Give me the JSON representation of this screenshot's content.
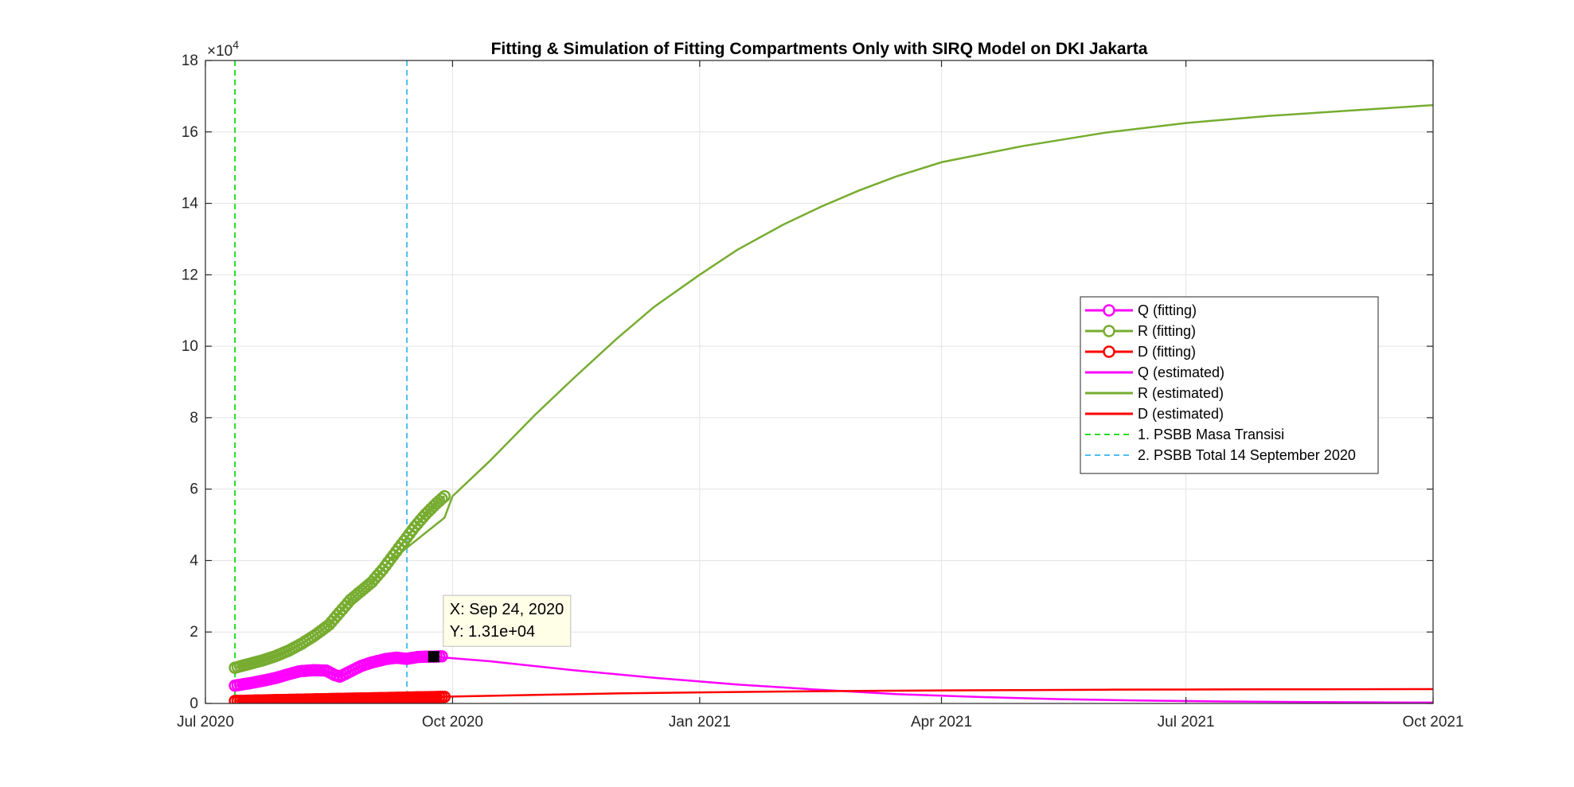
{
  "chart_data": {
    "type": "line",
    "title": "Fitting & Simulation of Fitting Compartments Only with SIRQ Model on DKI Jakarta",
    "xlabel": "",
    "ylabel": "",
    "y_multiplier_label": "×10",
    "y_multiplier_exp": "4",
    "x_range": [
      "2020-07-01",
      "2021-10-01"
    ],
    "ylim": [
      0,
      180000
    ],
    "x_ticks": [
      {
        "date": "2020-07-01",
        "label": "Jul 2020"
      },
      {
        "date": "2020-10-01",
        "label": "Oct 2020"
      },
      {
        "date": "2021-01-01",
        "label": "Jan 2021"
      },
      {
        "date": "2021-04-01",
        "label": "Apr 2021"
      },
      {
        "date": "2021-07-01",
        "label": "Jul 2021"
      },
      {
        "date": "2021-10-01",
        "label": "Oct 2021"
      }
    ],
    "y_ticks": [
      {
        "value": 0,
        "label": "0"
      },
      {
        "value": 20000,
        "label": "2"
      },
      {
        "value": 40000,
        "label": "4"
      },
      {
        "value": 60000,
        "label": "6"
      },
      {
        "value": 80000,
        "label": "8"
      },
      {
        "value": 100000,
        "label": "10"
      },
      {
        "value": 120000,
        "label": "12"
      },
      {
        "value": 140000,
        "label": "14"
      },
      {
        "value": 160000,
        "label": "16"
      },
      {
        "value": 180000,
        "label": "18"
      }
    ],
    "grid": true,
    "legend_position": "east",
    "series": [
      {
        "name": "Q (fitting)",
        "color": "#ff00ff",
        "style": "line-marker",
        "points": [
          [
            "2020-07-12",
            5000
          ],
          [
            "2020-07-17",
            5600
          ],
          [
            "2020-07-22",
            6300
          ],
          [
            "2020-07-27",
            7100
          ],
          [
            "2020-08-01",
            8200
          ],
          [
            "2020-08-05",
            9000
          ],
          [
            "2020-08-10",
            9300
          ],
          [
            "2020-08-15",
            9200
          ],
          [
            "2020-08-18",
            8000
          ],
          [
            "2020-08-20",
            7500
          ],
          [
            "2020-08-24",
            9000
          ],
          [
            "2020-08-28",
            10500
          ],
          [
            "2020-09-01",
            11500
          ],
          [
            "2020-09-06",
            12400
          ],
          [
            "2020-09-10",
            12800
          ],
          [
            "2020-09-14",
            12500
          ],
          [
            "2020-09-18",
            13000
          ],
          [
            "2020-09-22",
            13100
          ],
          [
            "2020-09-24",
            13100
          ],
          [
            "2020-09-27",
            13200
          ]
        ]
      },
      {
        "name": "R (fitting)",
        "color": "#77ac30",
        "style": "line-marker",
        "points": [
          [
            "2020-07-12",
            10000
          ],
          [
            "2020-07-17",
            11000
          ],
          [
            "2020-07-22",
            12000
          ],
          [
            "2020-07-27",
            13200
          ],
          [
            "2020-08-01",
            14800
          ],
          [
            "2020-08-06",
            16800
          ],
          [
            "2020-08-11",
            19200
          ],
          [
            "2020-08-16",
            22000
          ],
          [
            "2020-08-20",
            25500
          ],
          [
            "2020-08-24",
            29000
          ],
          [
            "2020-08-28",
            31500
          ],
          [
            "2020-09-01",
            34000
          ],
          [
            "2020-09-05",
            37500
          ],
          [
            "2020-09-09",
            41500
          ],
          [
            "2020-09-13",
            45500
          ],
          [
            "2020-09-17",
            49500
          ],
          [
            "2020-09-21",
            53000
          ],
          [
            "2020-09-25",
            56000
          ],
          [
            "2020-09-28",
            58000
          ]
        ]
      },
      {
        "name": "D (fitting)",
        "color": "#ff0000",
        "style": "line-marker",
        "points": [
          [
            "2020-07-12",
            700
          ],
          [
            "2020-07-22",
            850
          ],
          [
            "2020-08-01",
            1000
          ],
          [
            "2020-08-11",
            1150
          ],
          [
            "2020-08-21",
            1300
          ],
          [
            "2020-09-01",
            1450
          ],
          [
            "2020-09-11",
            1600
          ],
          [
            "2020-09-21",
            1750
          ],
          [
            "2020-09-28",
            1850
          ]
        ]
      },
      {
        "name": "Q (estimated)",
        "color": "#ff00ff",
        "style": "line",
        "points": [
          [
            "2020-09-10",
            12600
          ],
          [
            "2020-09-17",
            13800
          ],
          [
            "2020-09-24",
            13100
          ],
          [
            "2020-10-15",
            11800
          ],
          [
            "2020-11-15",
            9300
          ],
          [
            "2020-12-15",
            7200
          ],
          [
            "2021-01-15",
            5300
          ],
          [
            "2021-02-15",
            3800
          ],
          [
            "2021-03-15",
            2600
          ],
          [
            "2021-04-15",
            1800
          ],
          [
            "2021-05-15",
            1200
          ],
          [
            "2021-06-15",
            800
          ],
          [
            "2021-07-15",
            550
          ],
          [
            "2021-08-15",
            400
          ],
          [
            "2021-09-15",
            300
          ],
          [
            "2021-10-01",
            250
          ]
        ]
      },
      {
        "name": "R (estimated)",
        "color": "#77ac30",
        "style": "line",
        "points": [
          [
            "2020-09-08",
            40000
          ],
          [
            "2020-09-18",
            46000
          ],
          [
            "2020-09-28",
            52000
          ],
          [
            "2020-10-01",
            58000
          ],
          [
            "2020-10-15",
            68000
          ],
          [
            "2020-11-01",
            81000
          ],
          [
            "2020-11-15",
            91000
          ],
          [
            "2020-12-01",
            102000
          ],
          [
            "2020-12-15",
            111000
          ],
          [
            "2021-01-01",
            120000
          ],
          [
            "2021-01-15",
            127000
          ],
          [
            "2021-02-01",
            134000
          ],
          [
            "2021-02-15",
            139000
          ],
          [
            "2021-03-01",
            143500
          ],
          [
            "2021-03-15",
            147500
          ],
          [
            "2021-04-01",
            151500
          ],
          [
            "2021-05-01",
            156000
          ],
          [
            "2021-06-01",
            159800
          ],
          [
            "2021-07-01",
            162500
          ],
          [
            "2021-08-01",
            164500
          ],
          [
            "2021-09-01",
            166000
          ],
          [
            "2021-10-01",
            167500
          ]
        ]
      },
      {
        "name": "D (estimated)",
        "color": "#ff0000",
        "style": "line",
        "points": [
          [
            "2020-09-28",
            1900
          ],
          [
            "2020-11-01",
            2400
          ],
          [
            "2020-12-01",
            2800
          ],
          [
            "2021-01-01",
            3100
          ],
          [
            "2021-02-01",
            3350
          ],
          [
            "2021-03-01",
            3500
          ],
          [
            "2021-04-01",
            3650
          ],
          [
            "2021-05-01",
            3750
          ],
          [
            "2021-06-01",
            3850
          ],
          [
            "2021-07-01",
            3900
          ],
          [
            "2021-08-01",
            3950
          ],
          [
            "2021-10-01",
            4000
          ]
        ]
      },
      {
        "name": "1. PSBB Masa Transisi",
        "color": "#22dd22",
        "style": "vline",
        "date": "2020-07-12"
      },
      {
        "name": "2. PSBB Total 14 September 2020",
        "color": "#4dbeee",
        "style": "vline",
        "date": "2020-09-14"
      }
    ],
    "datatip": {
      "x_label": "X: Sep 24, 2020",
      "y_label": "Y: 1.31e+04",
      "date": "2020-09-24",
      "value": 13100
    }
  }
}
